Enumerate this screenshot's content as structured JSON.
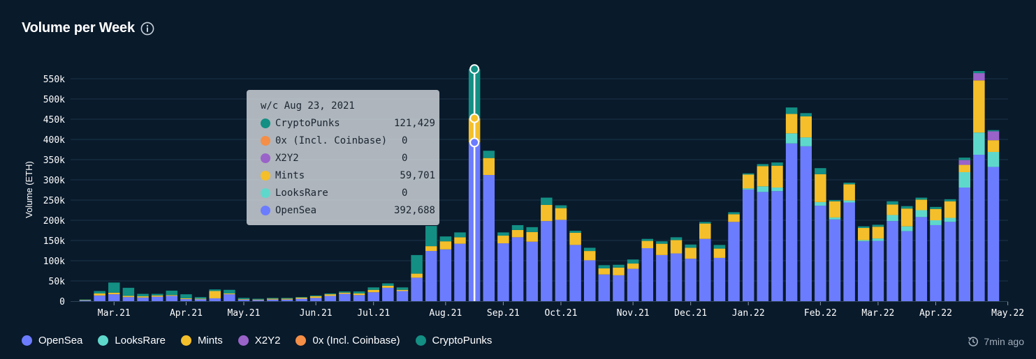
{
  "title": "Volume per Week",
  "updated": "7min ago",
  "colors": {
    "OpenSea": "#6c7cff",
    "LooksRare": "#5fd8cc",
    "Mints": "#f4bf2a",
    "X2Y2": "#9a63c9",
    "0x (Incl. Coinbase)": "#f58e46",
    "CryptoPunks": "#138f83",
    "grid": "#1c3448",
    "background": "#091a2b"
  },
  "legend": [
    {
      "name": "OpenSea",
      "color": "#6c7cff"
    },
    {
      "name": "LooksRare",
      "color": "#5fd8cc"
    },
    {
      "name": "Mints",
      "color": "#f4bf2a"
    },
    {
      "name": "X2Y2",
      "color": "#9a63c9"
    },
    {
      "name": "0x (Incl. Coinbase)",
      "color": "#f58e46"
    },
    {
      "name": "CryptoPunks",
      "color": "#138f83"
    }
  ],
  "tooltip": {
    "header": "w/c Aug 23, 2021",
    "rows": [
      {
        "name": "CryptoPunks",
        "value": "121,429",
        "color": "#138f83"
      },
      {
        "name": "0x (Incl. Coinbase)",
        "value": "0",
        "color": "#f58e46"
      },
      {
        "name": "X2Y2",
        "value": "0",
        "color": "#9a63c9"
      },
      {
        "name": "Mints",
        "value": "59,701",
        "color": "#f4bf2a"
      },
      {
        "name": "LooksRare",
        "value": "0",
        "color": "#5fd8cc"
      },
      {
        "name": "OpenSea",
        "value": "392,688",
        "color": "#6c7cff"
      }
    ]
  },
  "chart_data": {
    "type": "bar",
    "stacked": true,
    "ylabel": "Volume (ETH)",
    "ylim": [
      0,
      550000
    ],
    "yticks": [
      {
        "value": 0,
        "label": "0"
      },
      {
        "value": 50000,
        "label": "50k"
      },
      {
        "value": 100000,
        "label": "100k"
      },
      {
        "value": 150000,
        "label": "150k"
      },
      {
        "value": 200000,
        "label": "200k"
      },
      {
        "value": 250000,
        "label": "250k"
      },
      {
        "value": 300000,
        "label": "300k"
      },
      {
        "value": 350000,
        "label": "350k"
      },
      {
        "value": 400000,
        "label": "400k"
      },
      {
        "value": 450000,
        "label": "450k"
      },
      {
        "value": 500000,
        "label": "500k"
      },
      {
        "value": 550000,
        "label": "550k"
      }
    ],
    "xticks": [
      {
        "week": 2,
        "label": "Mar.21"
      },
      {
        "week": 7,
        "label": "Apr.21"
      },
      {
        "week": 11,
        "label": "May.21"
      },
      {
        "week": 16,
        "label": "Jun.21"
      },
      {
        "week": 20,
        "label": "Jul.21"
      },
      {
        "week": 25,
        "label": "Aug.21"
      },
      {
        "week": 29,
        "label": "Sep.21"
      },
      {
        "week": 33,
        "label": "Oct.21"
      },
      {
        "week": 38,
        "label": "Nov.21"
      },
      {
        "week": 42,
        "label": "Dec.21"
      },
      {
        "week": 46,
        "label": "Jan.22"
      },
      {
        "week": 51,
        "label": "Feb.22"
      },
      {
        "week": 55,
        "label": "Mar.22"
      },
      {
        "week": 59,
        "label": "Apr.22"
      },
      {
        "week": 64,
        "label": "May.22"
      }
    ],
    "grid": true,
    "legend_position": "bottom-left",
    "highlight_index": 27,
    "series_order": [
      "OpenSea",
      "LooksRare",
      "Mints",
      "X2Y2",
      "0x (Incl. Coinbase)",
      "CryptoPunks"
    ],
    "series": [
      {
        "name": "OpenSea",
        "values": [
          2000,
          14000,
          17000,
          10000,
          9000,
          11000,
          13000,
          5000,
          5000,
          7000,
          17000,
          4000,
          3000,
          4000,
          4000,
          6000,
          8000,
          13000,
          18000,
          15000,
          22000,
          33000,
          25000,
          58000,
          124000,
          128000,
          142000,
          392688,
          312000,
          143000,
          158000,
          147000,
          198000,
          201000,
          139000,
          101000,
          66000,
          64000,
          80000,
          131000,
          114000,
          118000,
          105000,
          154000,
          107000,
          196000,
          276000,
          270000,
          272000,
          390000,
          383000,
          236000,
          202000,
          244000,
          148000,
          149000,
          198000,
          173000,
          208000,
          188000,
          196000,
          281000,
          362000,
          332000
        ]
      },
      {
        "name": "LooksRare",
        "values": [
          0,
          0,
          0,
          0,
          0,
          0,
          0,
          0,
          0,
          0,
          0,
          0,
          0,
          0,
          0,
          0,
          0,
          0,
          0,
          0,
          0,
          0,
          0,
          0,
          0,
          0,
          0,
          0,
          0,
          0,
          0,
          0,
          0,
          0,
          0,
          0,
          0,
          0,
          0,
          0,
          0,
          0,
          0,
          0,
          0,
          0,
          3000,
          14000,
          9000,
          25000,
          22000,
          9000,
          5000,
          5000,
          3000,
          6000,
          15000,
          12000,
          17000,
          12000,
          10000,
          38000,
          55000,
          37000
        ]
      },
      {
        "name": "Mints",
        "values": [
          1000,
          5000,
          4000,
          3000,
          3000,
          3000,
          2000,
          2000,
          1000,
          18000,
          2000,
          1000,
          1000,
          2000,
          2000,
          3000,
          4000,
          4000,
          3000,
          4000,
          6000,
          5000,
          3000,
          10000,
          12000,
          20000,
          16000,
          59701,
          42000,
          19000,
          18000,
          24000,
          40000,
          29000,
          30000,
          23000,
          15000,
          19000,
          13000,
          18000,
          28000,
          33000,
          27000,
          38000,
          23000,
          19000,
          34000,
          50000,
          54000,
          48000,
          52000,
          69000,
          40000,
          40000,
          30000,
          29000,
          26000,
          44000,
          26000,
          28000,
          41000,
          18000,
          129000,
          29000
        ]
      },
      {
        "name": "X2Y2",
        "values": [
          0,
          0,
          0,
          0,
          0,
          0,
          0,
          0,
          0,
          0,
          0,
          0,
          0,
          0,
          0,
          0,
          0,
          0,
          0,
          0,
          0,
          0,
          0,
          0,
          0,
          0,
          0,
          0,
          0,
          0,
          0,
          0,
          0,
          0,
          0,
          0,
          0,
          0,
          0,
          0,
          0,
          0,
          0,
          0,
          0,
          0,
          0,
          0,
          0,
          0,
          0,
          0,
          0,
          0,
          0,
          0,
          0,
          0,
          0,
          0,
          0,
          12000,
          18000,
          22000
        ]
      },
      {
        "name": "0x (Incl. Coinbase)",
        "values": [
          0,
          0,
          0,
          0,
          0,
          0,
          0,
          0,
          0,
          0,
          0,
          0,
          0,
          0,
          0,
          0,
          0,
          0,
          0,
          0,
          0,
          0,
          0,
          0,
          0,
          0,
          0,
          0,
          0,
          0,
          0,
          0,
          0,
          0,
          0,
          0,
          0,
          0,
          0,
          0,
          0,
          0,
          0,
          0,
          0,
          0,
          0,
          0,
          0,
          0,
          0,
          0,
          0,
          0,
          0,
          0,
          0,
          0,
          0,
          0,
          0,
          0,
          0,
          0
        ]
      },
      {
        "name": "CryptoPunks",
        "values": [
          1000,
          6000,
          25000,
          20000,
          6000,
          4000,
          11000,
          10000,
          4000,
          4000,
          9000,
          3000,
          2000,
          2000,
          2000,
          1000,
          2000,
          2000,
          3000,
          5000,
          6000,
          6000,
          6000,
          46000,
          50000,
          12000,
          12000,
          121429,
          18000,
          8000,
          12000,
          12000,
          18000,
          7000,
          5000,
          8000,
          8000,
          7000,
          10000,
          5000,
          6000,
          7000,
          8000,
          4000,
          9000,
          5000,
          3000,
          5000,
          8000,
          16000,
          8000,
          15000,
          3000,
          4000,
          4000,
          5000,
          8000,
          6000,
          5000,
          5000,
          5000,
          6000,
          5000,
          3000
        ]
      }
    ]
  }
}
